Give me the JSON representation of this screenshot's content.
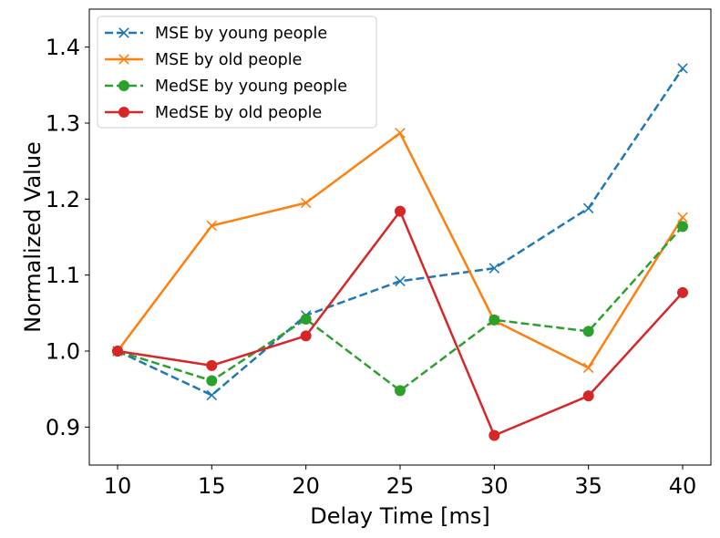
{
  "chart_data": {
    "type": "line",
    "xlabel": "Delay Time [ms]",
    "ylabel": "Normalized Value",
    "x": [
      10,
      15,
      20,
      25,
      30,
      35,
      40
    ],
    "xlim": [
      8.5,
      41.5
    ],
    "ylim": [
      0.85,
      1.45
    ],
    "xticks": [
      "10",
      "15",
      "20",
      "25",
      "30",
      "35",
      "40"
    ],
    "yticks": [
      "0.9",
      "1.0",
      "1.1",
      "1.2",
      "1.3",
      "1.4"
    ],
    "grid": false,
    "legend_position": "top-left",
    "series": [
      {
        "name": "MSE by young people",
        "values": [
          1.0,
          0.942,
          1.047,
          1.092,
          1.109,
          1.188,
          1.372
        ],
        "color": "#1f77b4",
        "linestyle": "dashed",
        "marker": "x"
      },
      {
        "name": "MSE by old people",
        "values": [
          1.0,
          1.165,
          1.195,
          1.287,
          1.04,
          0.978,
          1.176
        ],
        "color": "#ff7f0e",
        "linestyle": "solid",
        "marker": "x"
      },
      {
        "name": "MedSE by young people",
        "values": [
          1.0,
          0.961,
          1.042,
          0.948,
          1.041,
          1.026,
          1.164
        ],
        "color": "#2ca02c",
        "linestyle": "dashed",
        "marker": "o"
      },
      {
        "name": "MedSE by old people",
        "values": [
          1.0,
          0.981,
          1.02,
          1.184,
          0.889,
          0.941,
          1.077
        ],
        "color": "#d62728",
        "linestyle": "solid",
        "marker": "o"
      }
    ]
  }
}
